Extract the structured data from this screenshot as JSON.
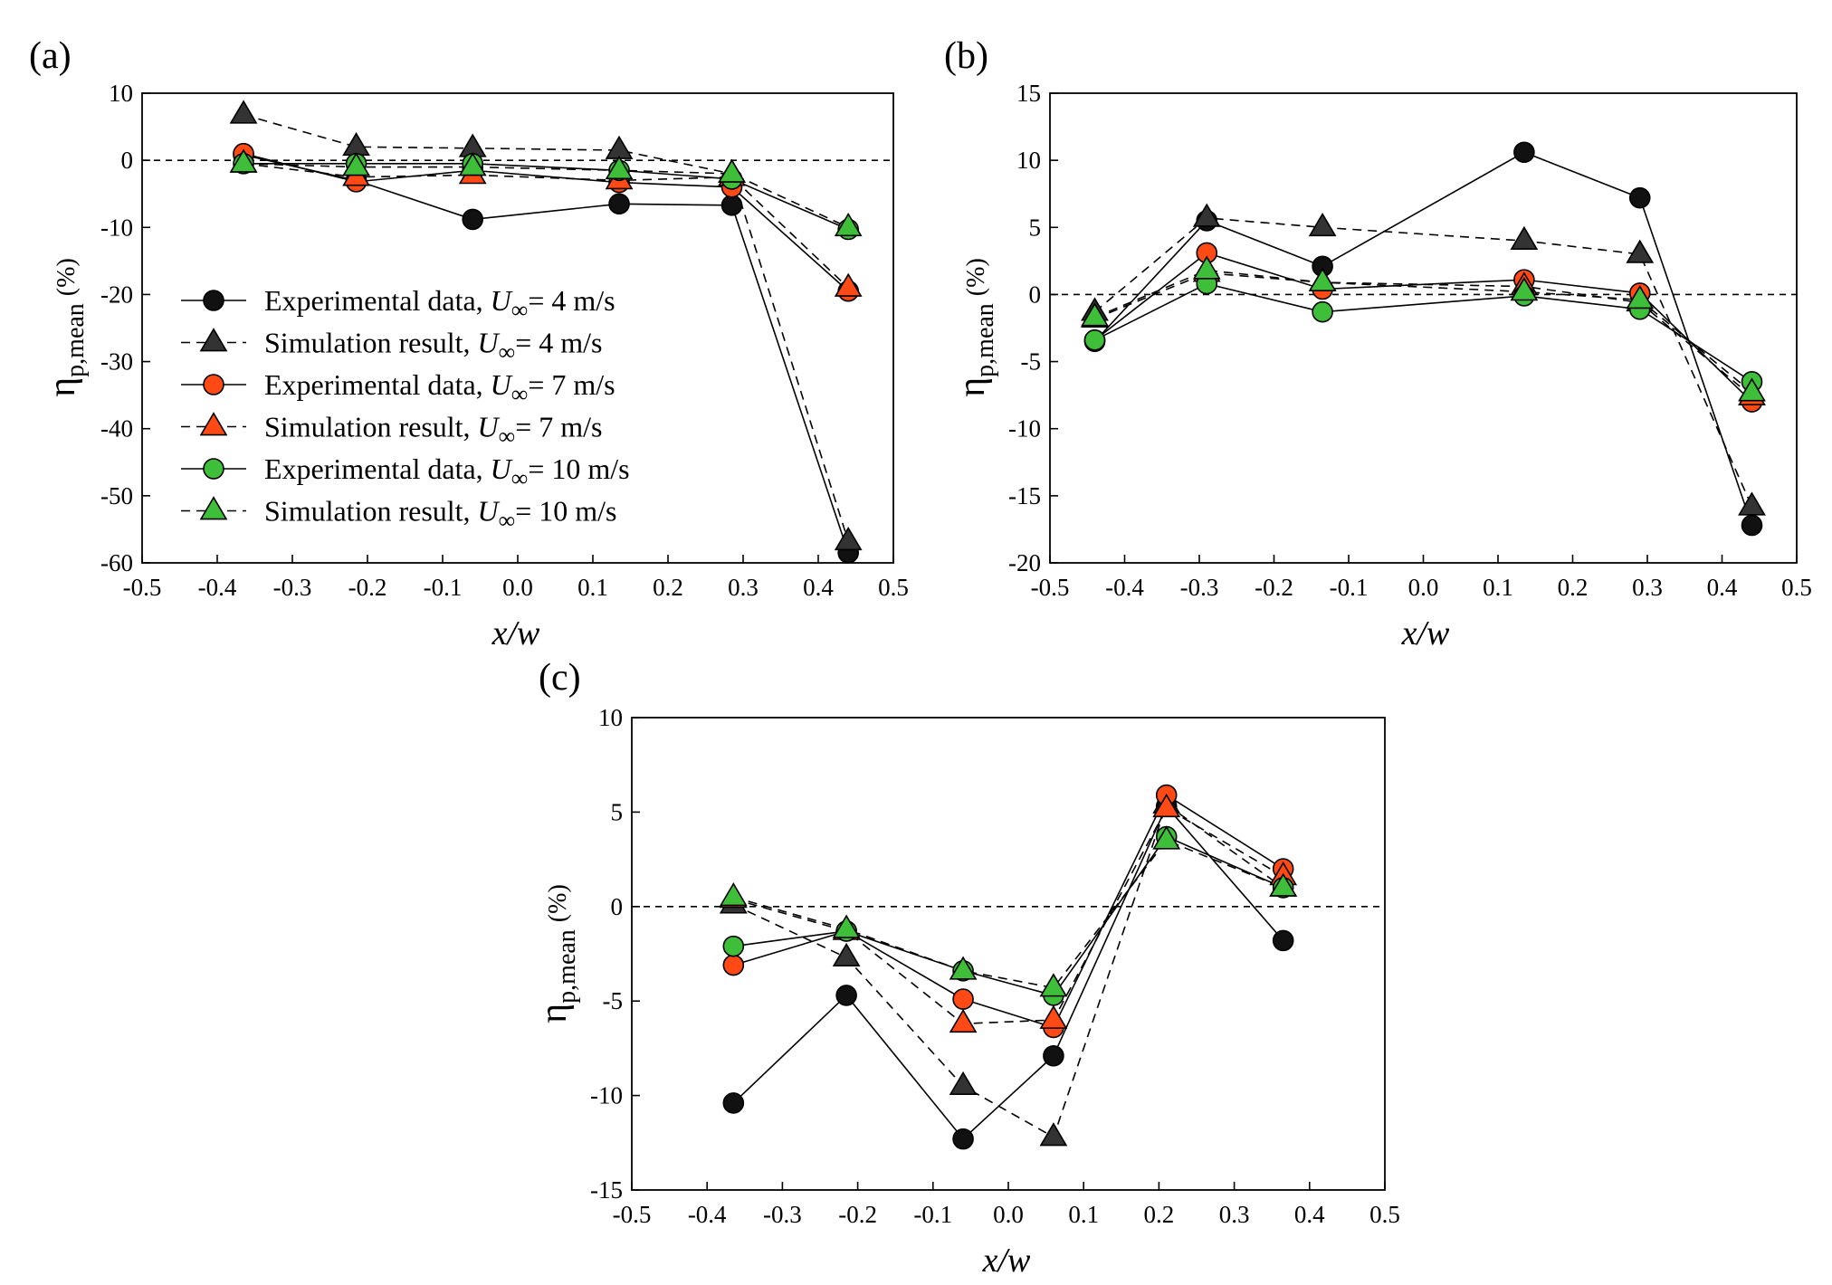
{
  "figure": {
    "panels": [
      "(a)",
      "(b)",
      "(c)"
    ]
  },
  "legend": [
    {
      "prefix": "Experimental data, ",
      "var": "U",
      "sub": "∞",
      "suffix": "= 4 m/s"
    },
    {
      "prefix": "Simulation result, ",
      "var": "U",
      "sub": "∞",
      "suffix": "= 4 m/s"
    },
    {
      "prefix": "Experimental data, ",
      "var": "U",
      "sub": "∞",
      "suffix": "= 7 m/s"
    },
    {
      "prefix": "Simulation result, ",
      "var": "U",
      "sub": "∞",
      "suffix": "= 7 m/s"
    },
    {
      "prefix": "Experimental data, ",
      "var": "U",
      "sub": "∞",
      "suffix": "= 10 m/s"
    },
    {
      "prefix": "Simulation result, ",
      "var": "U",
      "sub": "∞",
      "suffix": "= 10 m/s"
    }
  ],
  "colors": {
    "v4": "#111111",
    "v4_sim": "#333333",
    "v7": "#ff4a16",
    "v10": "#3fbe3a",
    "stroke": "#000000"
  },
  "chart_data": [
    {
      "type": "line",
      "label": "(a)",
      "xlabel": "x/w",
      "ylabel": "η_p,mean (%)",
      "ylabel_main": "η",
      "ylabel_sub": "p,mean",
      "ylabel_unit": "(%)",
      "xlim": [
        -0.5,
        0.5
      ],
      "ylim": [
        -60,
        10
      ],
      "xticks": [
        "-0.5",
        "-0.4",
        "-0.3",
        "-0.2",
        "-0.1",
        "0.0",
        "0.1",
        "0.2",
        "0.3",
        "0.4",
        "0.5"
      ],
      "yticks": [
        "-60",
        "-50",
        "-40",
        "-30",
        "-20",
        "-10",
        "0",
        "10"
      ],
      "x": [
        -0.365,
        -0.215,
        -0.06,
        0.135,
        0.285,
        0.44
      ],
      "series": [
        {
          "name": "Experimental data, U∞= 4 m/s",
          "kind": "exp",
          "color": "#111111",
          "values": [
            0.8,
            -3.0,
            -8.8,
            -6.5,
            -6.7,
            -58.5
          ]
        },
        {
          "name": "Simulation result, U∞= 4 m/s",
          "kind": "sim",
          "color": "#333333",
          "values": [
            6.8,
            2.0,
            1.8,
            1.5,
            -2.0,
            -56.8
          ]
        },
        {
          "name": "Experimental data, U∞= 7 m/s",
          "kind": "exp",
          "color": "#ff4a16",
          "values": [
            1.0,
            -3.2,
            -1.5,
            -3.3,
            -4.0,
            -19.5
          ]
        },
        {
          "name": "Simulation result, U∞= 7 m/s",
          "kind": "sim",
          "color": "#ff4a16",
          "values": [
            -0.5,
            -2.5,
            -2.2,
            -3.0,
            -2.5,
            -19.0
          ]
        },
        {
          "name": "Experimental data, U∞= 10 m/s",
          "kind": "exp",
          "color": "#3fbe3a",
          "values": [
            -0.5,
            -0.5,
            -0.5,
            -1.5,
            -2.8,
            -10.3
          ]
        },
        {
          "name": "Simulation result, U∞= 10 m/s",
          "kind": "sim",
          "color": "#3fbe3a",
          "values": [
            -0.5,
            -1.0,
            -1.0,
            -1.5,
            -2.0,
            -10.0
          ]
        }
      ]
    },
    {
      "type": "line",
      "label": "(b)",
      "xlabel": "x/w",
      "ylabel": "η_p,mean (%)",
      "ylabel_main": "η",
      "ylabel_sub": "p,mean",
      "ylabel_unit": "(%)",
      "xlim": [
        -0.5,
        0.5
      ],
      "ylim": [
        -20,
        15
      ],
      "xticks": [
        "-0.5",
        "-0.4",
        "-0.3",
        "-0.2",
        "-0.1",
        "0.0",
        "0.1",
        "0.2",
        "0.3",
        "0.4",
        "0.5"
      ],
      "yticks": [
        "-20",
        "-15",
        "-10",
        "-5",
        "0",
        "5",
        "10",
        "15"
      ],
      "x": [
        -0.44,
        -0.29,
        -0.135,
        0.135,
        0.29,
        0.44
      ],
      "series": [
        {
          "name": "Experimental data, U∞= 4 m/s",
          "kind": "exp",
          "color": "#111111",
          "values": [
            -3.5,
            5.5,
            2.1,
            10.6,
            7.2,
            -17.2
          ]
        },
        {
          "name": "Simulation result, U∞= 4 m/s",
          "kind": "sim",
          "color": "#333333",
          "values": [
            -1.3,
            5.7,
            5.0,
            4.0,
            3.0,
            -15.8
          ]
        },
        {
          "name": "Experimental data, U∞= 7 m/s",
          "kind": "exp",
          "color": "#ff4a16",
          "values": [
            -3.4,
            3.1,
            0.4,
            1.1,
            0.1,
            -8.0
          ]
        },
        {
          "name": "Simulation result, U∞= 7 m/s",
          "kind": "sim",
          "color": "#ff4a16",
          "values": [
            -1.8,
            1.6,
            0.9,
            0.6,
            -0.6,
            -7.6
          ]
        },
        {
          "name": "Experimental data, U∞= 10 m/s",
          "kind": "exp",
          "color": "#3fbe3a",
          "values": [
            -3.4,
            0.8,
            -1.3,
            -0.1,
            -1.1,
            -6.5
          ]
        },
        {
          "name": "Simulation result, U∞= 10 m/s",
          "kind": "sim",
          "color": "#3fbe3a",
          "values": [
            -1.7,
            1.8,
            0.9,
            0.2,
            -0.4,
            -7.3
          ]
        }
      ]
    },
    {
      "type": "line",
      "label": "(c)",
      "xlabel": "x/w",
      "ylabel": "η_p,mean (%)",
      "ylabel_main": "η",
      "ylabel_sub": "p,mean",
      "ylabel_unit": "(%)",
      "xlim": [
        -0.5,
        0.5
      ],
      "ylim": [
        -15,
        10
      ],
      "xticks": [
        "-0.5",
        "-0.4",
        "-0.3",
        "-0.2",
        "-0.1",
        "0.0",
        "0.1",
        "0.2",
        "0.3",
        "0.4",
        "0.5"
      ],
      "yticks": [
        "-15",
        "-10",
        "-5",
        "0",
        "5",
        "10"
      ],
      "x": [
        -0.365,
        -0.215,
        -0.06,
        0.06,
        0.21,
        0.365
      ],
      "series": [
        {
          "name": "Experimental data, U∞= 4 m/s",
          "kind": "exp",
          "color": "#111111",
          "values": [
            -10.4,
            -4.7,
            -12.3,
            -7.9,
            5.3,
            -1.8
          ]
        },
        {
          "name": "Simulation result, U∞= 4 m/s",
          "kind": "sim",
          "color": "#333333",
          "values": [
            0.1,
            -2.7,
            -9.5,
            -12.2,
            5.4,
            1.0
          ]
        },
        {
          "name": "Experimental data, U∞= 7 m/s",
          "kind": "exp",
          "color": "#ff4a16",
          "values": [
            -3.1,
            -1.3,
            -4.9,
            -6.4,
            5.9,
            2.0
          ]
        },
        {
          "name": "Simulation result, U∞= 7 m/s",
          "kind": "sim",
          "color": "#ff4a16",
          "values": [
            0.4,
            -1.3,
            -6.2,
            -6.0,
            5.2,
            1.6
          ]
        },
        {
          "name": "Experimental data, U∞= 10 m/s",
          "kind": "exp",
          "color": "#3fbe3a",
          "values": [
            -2.1,
            -1.3,
            -3.4,
            -4.7,
            3.7,
            1.0
          ]
        },
        {
          "name": "Simulation result, U∞= 10 m/s",
          "kind": "sim",
          "color": "#3fbe3a",
          "values": [
            0.5,
            -1.2,
            -3.4,
            -4.3,
            3.5,
            1.0
          ]
        }
      ]
    }
  ]
}
